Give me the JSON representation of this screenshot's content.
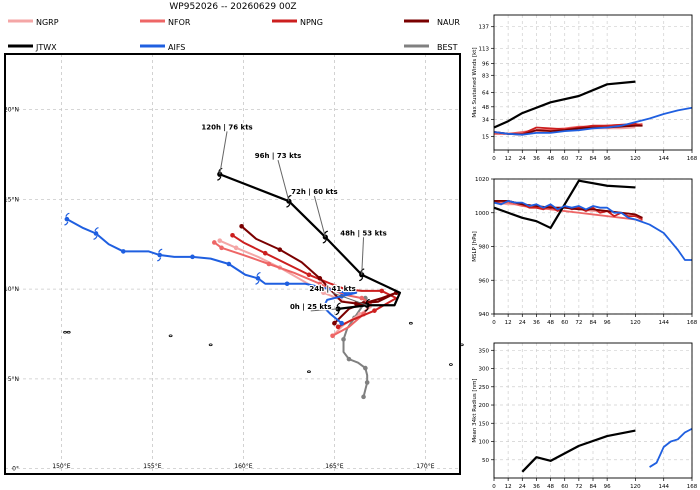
{
  "title": "WP952026 -- 20260629 00Z",
  "legend": [
    {
      "name": "NGRP",
      "color": "#f4a6a6"
    },
    {
      "name": "NFOR",
      "color": "#ee6666"
    },
    {
      "name": "NPNG",
      "color": "#cc1f1f"
    },
    {
      "name": "NAUR",
      "color": "#7a0000"
    },
    {
      "name": "JTWX",
      "color": "#000000"
    },
    {
      "name": "AIFS",
      "color": "#1f5fe0"
    },
    {
      "name": "BEST",
      "color": "#808080"
    }
  ],
  "chart_data": [
    {
      "type": "line",
      "name": "track_map",
      "xlabels": [
        "150°E",
        "155°E",
        "160°E",
        "165°E",
        "170°E"
      ],
      "xticks": [
        150,
        155,
        160,
        165,
        170
      ],
      "ylabels": [
        "0°",
        "5°N",
        "10°N",
        "15°N",
        "20°N"
      ],
      "yticks": [
        0,
        5,
        10,
        15,
        20
      ],
      "xlim": [
        146.9,
        171.9
      ],
      "ylim": [
        -0.3,
        23.1
      ],
      "series": [
        {
          "name": "BEST",
          "color": "#808080",
          "points": [
            [
              166.7,
              9.5
            ],
            [
              166.5,
              9.0
            ],
            [
              166.1,
              8.4
            ],
            [
              165.7,
              7.8
            ],
            [
              165.5,
              7.2
            ],
            [
              165.5,
              6.5
            ],
            [
              165.8,
              6.1
            ],
            [
              166.3,
              5.9
            ],
            [
              166.7,
              5.6
            ],
            [
              166.8,
              5.2
            ],
            [
              166.8,
              4.8
            ],
            [
              166.7,
              4.4
            ],
            [
              166.6,
              4.0
            ]
          ]
        },
        {
          "name": "NGRP",
          "color": "#f4a6a6",
          "points": [
            [
              164.9,
              7.4
            ],
            [
              165.5,
              8.0
            ],
            [
              166.4,
              8.6
            ],
            [
              167.0,
              9.0
            ],
            [
              166.6,
              9.2
            ],
            [
              165.6,
              9.3
            ],
            [
              164.4,
              9.8
            ],
            [
              163.2,
              10.5
            ],
            [
              162.0,
              11.2
            ],
            [
              160.8,
              11.8
            ],
            [
              159.6,
              12.3
            ],
            [
              158.7,
              12.7
            ]
          ]
        },
        {
          "name": "NFOR",
          "color": "#ee6666",
          "points": [
            [
              164.9,
              7.4
            ],
            [
              165.8,
              7.9
            ],
            [
              166.6,
              8.6
            ],
            [
              167.0,
              9.2
            ],
            [
              166.5,
              9.5
            ],
            [
              165.5,
              9.7
            ],
            [
              164.2,
              10.3
            ],
            [
              162.8,
              10.9
            ],
            [
              161.4,
              11.4
            ],
            [
              160.0,
              11.9
            ],
            [
              158.8,
              12.3
            ],
            [
              158.4,
              12.6
            ]
          ]
        },
        {
          "name": "NPNG",
          "color": "#cc1f1f",
          "points": [
            [
              165.2,
              7.9
            ],
            [
              166.0,
              8.3
            ],
            [
              167.2,
              8.8
            ],
            [
              168.4,
              9.5
            ],
            [
              167.6,
              9.9
            ],
            [
              166.5,
              9.9
            ],
            [
              165.6,
              10.0
            ],
            [
              164.8,
              10.3
            ],
            [
              163.6,
              10.8
            ],
            [
              162.4,
              11.4
            ],
            [
              161.2,
              12.0
            ],
            [
              160.0,
              12.6
            ],
            [
              159.4,
              13.0
            ]
          ]
        },
        {
          "name": "NAUR",
          "color": "#7a0000",
          "points": [
            [
              165.0,
              8.1
            ],
            [
              165.8,
              8.9
            ],
            [
              166.6,
              9.2
            ],
            [
              167.6,
              9.5
            ],
            [
              168.4,
              9.8
            ],
            [
              167.4,
              9.3
            ],
            [
              166.2,
              9.2
            ],
            [
              165.4,
              9.3
            ],
            [
              164.2,
              10.6
            ],
            [
              163.2,
              11.5
            ],
            [
              162.0,
              12.2
            ],
            [
              160.7,
              12.8
            ],
            [
              159.9,
              13.5
            ]
          ]
        },
        {
          "name": "JTWX",
          "color": "#000000",
          "points": [
            [
              165.2,
              8.9
            ],
            [
              166.8,
              9.1
            ],
            [
              168.3,
              9.1
            ],
            [
              168.6,
              9.8
            ],
            [
              166.5,
              10.8
            ],
            [
              164.5,
              12.9
            ],
            [
              162.5,
              14.9
            ],
            [
              158.7,
              16.4
            ]
          ]
        },
        {
          "name": "AIFS",
          "color": "#1f5fe0",
          "points": [
            [
              165.4,
              8.1
            ],
            [
              164.8,
              8.6
            ],
            [
              164.4,
              9.0
            ],
            [
              164.6,
              9.4
            ],
            [
              165.4,
              9.6
            ],
            [
              166.2,
              9.8
            ],
            [
              165.6,
              9.8
            ],
            [
              163.4,
              10.3
            ],
            [
              162.4,
              10.3
            ],
            [
              161.2,
              10.3
            ],
            [
              160.8,
              10.6
            ],
            [
              160.1,
              10.8
            ],
            [
              159.2,
              11.4
            ],
            [
              158.2,
              11.7
            ],
            [
              157.2,
              11.8
            ],
            [
              156.2,
              11.8
            ],
            [
              155.4,
              11.9
            ],
            [
              154.8,
              12.1
            ],
            [
              153.4,
              12.1
            ],
            [
              152.6,
              12.5
            ],
            [
              151.9,
              13.1
            ],
            [
              151.2,
              13.4
            ],
            [
              150.3,
              13.9
            ]
          ]
        }
      ],
      "annotations": [
        {
          "label": "0h | 25 kts",
          "lon": 165.2,
          "lat": 8.9,
          "tlon": 163.7,
          "tlat": 8.9
        },
        {
          "label": "24h | 41 kts",
          "lon": 166.8,
          "lat": 9.1,
          "tlon": 164.9,
          "tlat": 9.9
        },
        {
          "label": "48h | 53 kts",
          "lon": 166.5,
          "lat": 10.8,
          "tlon": 166.6,
          "tlat": 13.0
        },
        {
          "label": "72h | 60 kts",
          "lon": 164.5,
          "lat": 12.9,
          "tlon": 163.9,
          "tlat": 15.3
        },
        {
          "label": "96h | 73 kts",
          "lon": 162.5,
          "lat": 14.9,
          "tlon": 161.9,
          "tlat": 17.3
        },
        {
          "label": "120h | 76 kts",
          "lon": 158.7,
          "lat": 16.4,
          "tlon": 159.1,
          "tlat": 18.9
        }
      ]
    },
    {
      "type": "line",
      "name": "max_winds",
      "ylabel": "Max Sustained Winds [kt]",
      "xticks": [
        0,
        12,
        24,
        36,
        48,
        60,
        72,
        84,
        96,
        120,
        144,
        168
      ],
      "yticks": [
        15,
        34,
        48,
        64,
        83,
        96,
        113,
        137
      ],
      "xlim": [
        0,
        168
      ],
      "ylim": [
        0,
        150
      ],
      "series": [
        {
          "name": "NGRP",
          "color": "#f4a6a6",
          "x": [
            0,
            12,
            24,
            36,
            48,
            60,
            72,
            84,
            96,
            108,
            120
          ],
          "y": [
            18,
            18,
            19,
            20,
            22,
            22,
            23,
            24,
            24,
            24,
            25
          ]
        },
        {
          "name": "NFOR",
          "color": "#ee6666",
          "x": [
            0,
            12,
            24,
            36,
            48,
            60,
            72,
            84,
            96,
            108,
            120,
            126
          ],
          "y": [
            18,
            18,
            20,
            22,
            23,
            24,
            26,
            26,
            27,
            28,
            28,
            29
          ]
        },
        {
          "name": "NPNG",
          "color": "#cc1f1f",
          "x": [
            0,
            12,
            24,
            36,
            48,
            60,
            72,
            84,
            96,
            108,
            120,
            126
          ],
          "y": [
            20,
            18,
            18,
            25,
            24,
            23,
            25,
            27,
            27,
            28,
            29,
            27
          ]
        },
        {
          "name": "NAUR",
          "color": "#7a0000",
          "x": [
            0,
            12,
            24,
            36,
            48,
            60,
            72,
            84,
            96,
            108,
            120,
            126
          ],
          "y": [
            20,
            18,
            17,
            22,
            21,
            22,
            24,
            25,
            25,
            26,
            27,
            27
          ]
        },
        {
          "name": "JTWX",
          "color": "#000000",
          "x": [
            0,
            12,
            24,
            48,
            72,
            96,
            120
          ],
          "y": [
            25,
            32,
            41,
            53,
            60,
            73,
            76
          ]
        },
        {
          "name": "AIFS",
          "color": "#1f5fe0",
          "x": [
            0,
            12,
            24,
            36,
            48,
            60,
            72,
            84,
            96,
            108,
            120,
            132,
            144,
            156,
            168
          ],
          "y": [
            20,
            18,
            17,
            19,
            19,
            21,
            22,
            24,
            25,
            27,
            31,
            35,
            40,
            44,
            47
          ]
        }
      ]
    },
    {
      "type": "line",
      "name": "mslp",
      "ylabel": "MSLP [hPa]",
      "xticks": [
        0,
        12,
        24,
        36,
        48,
        60,
        72,
        84,
        96,
        120,
        144,
        168
      ],
      "yticks": [
        940,
        960,
        980,
        1000,
        1020
      ],
      "xlim": [
        0,
        168
      ],
      "ylim": [
        940,
        1020
      ],
      "series": [
        {
          "name": "NGRP",
          "color": "#f4a6a6",
          "x": [
            0,
            12,
            24,
            36,
            48,
            60,
            72,
            84,
            96,
            108,
            120
          ],
          "y": [
            1006,
            1005,
            1005,
            1004,
            1003,
            1003,
            1002,
            1001,
            1001,
            1000,
            999
          ]
        },
        {
          "name": "NFOR",
          "color": "#ee6666",
          "x": [
            0,
            12,
            24,
            36,
            48,
            60,
            72,
            84,
            96,
            108,
            120,
            126
          ],
          "y": [
            1006,
            1006,
            1004,
            1003,
            1002,
            1001,
            1000,
            999,
            998,
            997,
            996,
            995
          ]
        },
        {
          "name": "NPNG",
          "color": "#cc1f1f",
          "x": [
            0,
            6,
            12,
            18,
            24,
            30,
            36,
            42,
            48,
            54,
            60,
            66,
            72,
            78,
            84,
            90,
            96,
            102,
            108,
            114,
            120,
            126
          ],
          "y": [
            1007,
            1005,
            1007,
            1006,
            1005,
            1003,
            1003,
            1002,
            1004,
            1001,
            1004,
            1002,
            1003,
            1001,
            1003,
            1000,
            1001,
            998,
            1000,
            998,
            998,
            996
          ]
        },
        {
          "name": "NAUR",
          "color": "#7a0000",
          "x": [
            0,
            12,
            24,
            36,
            48,
            60,
            72,
            84,
            96,
            108,
            120,
            126
          ],
          "y": [
            1007,
            1007,
            1005,
            1004,
            1003,
            1003,
            1002,
            1002,
            1001,
            1000,
            999,
            997
          ]
        },
        {
          "name": "JTWX",
          "color": "#000000",
          "x": [
            0,
            12,
            24,
            36,
            48,
            72,
            96,
            120
          ],
          "y": [
            1003,
            1000,
            997,
            995,
            991,
            1019,
            1016,
            1015
          ]
        },
        {
          "name": "AIFS",
          "color": "#1f5fe0",
          "x": [
            0,
            6,
            12,
            18,
            24,
            30,
            36,
            42,
            48,
            54,
            60,
            66,
            72,
            78,
            84,
            90,
            96,
            102,
            108,
            114,
            120,
            132,
            144,
            150,
            156,
            162,
            168
          ],
          "y": [
            1006,
            1005,
            1007,
            1006,
            1006,
            1004,
            1005,
            1003,
            1005,
            1002,
            1004,
            1003,
            1004,
            1002,
            1004,
            1003,
            1003,
            1000,
            1000,
            997,
            996,
            993,
            988,
            983,
            978,
            972,
            972
          ]
        }
      ]
    },
    {
      "type": "line",
      "name": "radius_34kt",
      "ylabel": "Mean 34kt Radius [nm]",
      "xticks": [
        0,
        12,
        24,
        36,
        48,
        60,
        72,
        84,
        96,
        120,
        144,
        168
      ],
      "yticks": [
        50,
        100,
        150,
        200,
        250,
        300,
        350
      ],
      "xlim": [
        0,
        168
      ],
      "ylim": [
        0,
        370
      ],
      "series": [
        {
          "name": "JTWX",
          "color": "#000000",
          "x": [
            24,
            36,
            48,
            72,
            96,
            120
          ],
          "y": [
            17,
            57,
            47,
            88,
            115,
            130
          ]
        },
        {
          "name": "AIFS",
          "color": "#1f5fe0",
          "x": [
            132,
            138,
            144,
            150,
            156,
            162,
            168
          ],
          "y": [
            30,
            42,
            85,
            100,
            106,
            125,
            135
          ]
        }
      ]
    }
  ]
}
